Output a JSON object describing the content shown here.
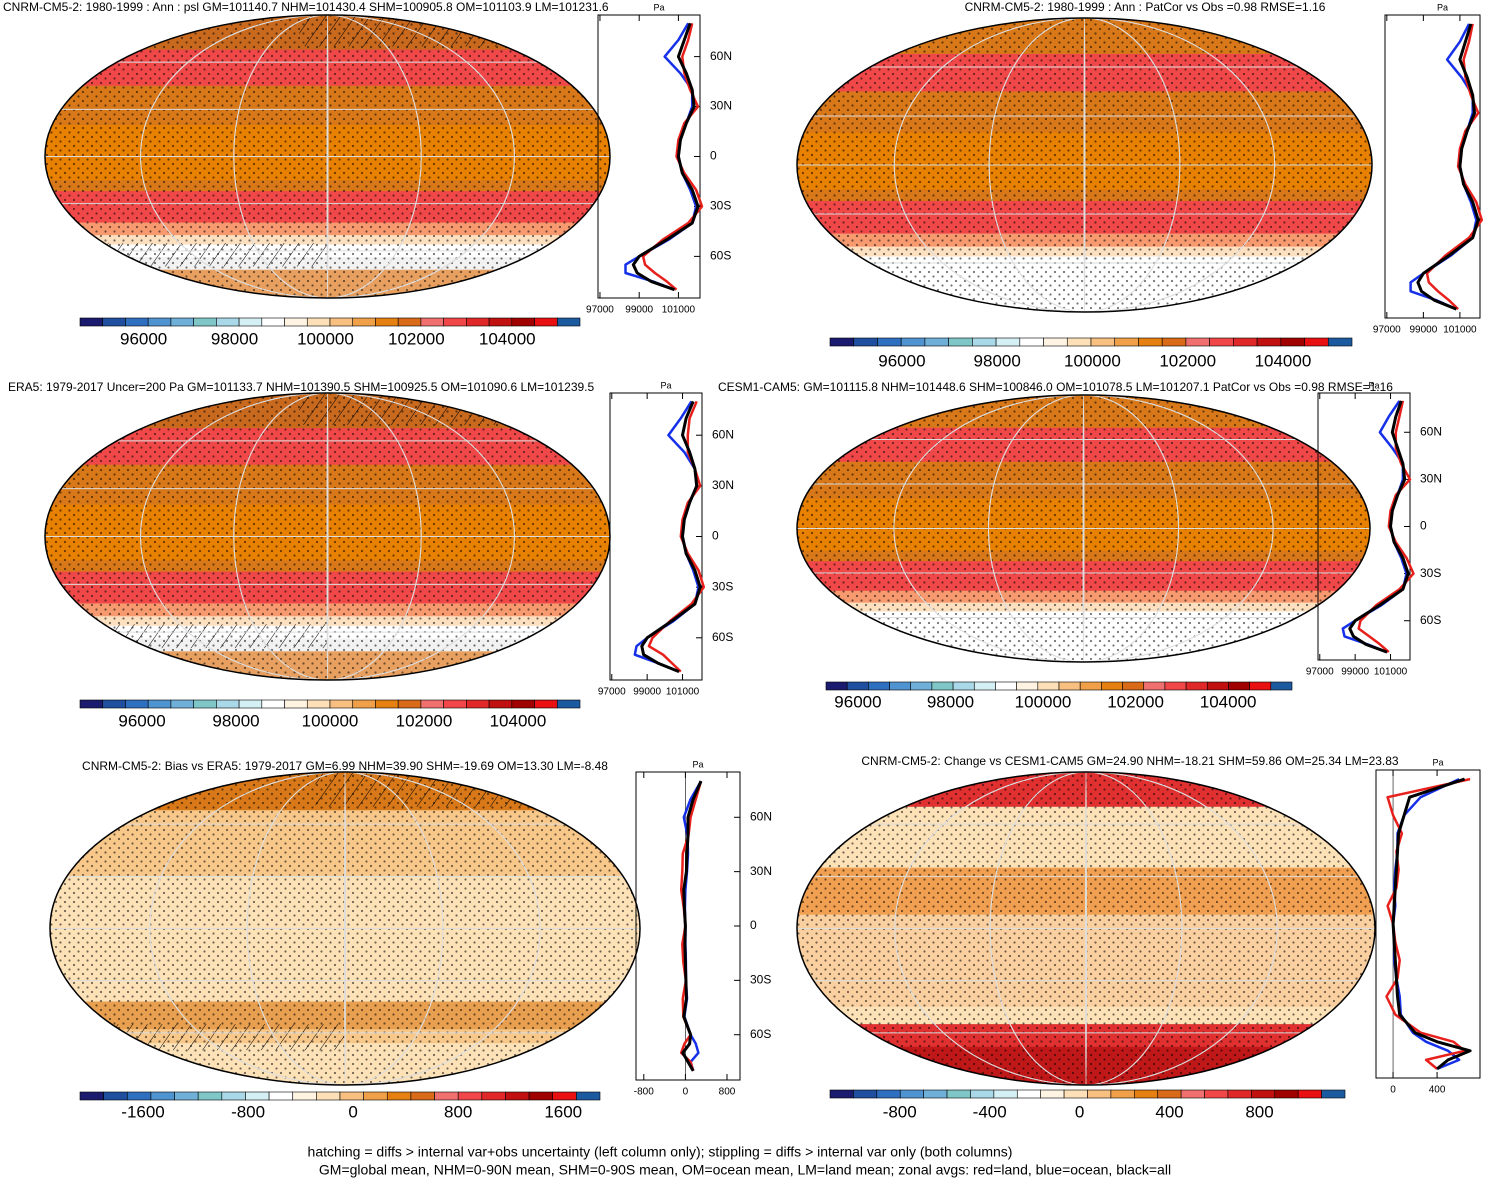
{
  "panels": [
    {
      "title": "CNRM-CM5-2: 1980-1999 : Ann : psl GM=101140.7 NHM=101430.4 SHM=100905.8 OM=101103.9 LM=101231.6",
      "style": "abs",
      "colorbar": {
        "lim": [
          94600,
          105600
        ],
        "ticks": [
          96000,
          98000,
          100000,
          102000,
          104000
        ]
      },
      "profile": {
        "unit": "Pa",
        "xlim": [
          96900,
          102100
        ],
        "xticks": [
          97000,
          99000,
          101000
        ],
        "ylim": [
          -85,
          85
        ],
        "yticks": [
          {
            "value": 60,
            "label": "60N"
          },
          {
            "value": 30,
            "label": "30N"
          },
          0,
          {
            "value": -30,
            "label": "30S"
          },
          {
            "value": -60,
            "label": "60S"
          }
        ],
        "lat": [
          80,
          70,
          60,
          50,
          40,
          30,
          20,
          10,
          0,
          -10,
          -20,
          -30,
          -40,
          -50,
          -60,
          -65,
          -70,
          -75,
          -80
        ],
        "land": [
          101700,
          101500,
          101200,
          101300,
          101600,
          102000,
          101300,
          101000,
          100900,
          101300,
          101900,
          102200,
          101500,
          100200,
          99200,
          99300,
          99800,
          100400,
          100900
        ],
        "ocean": [
          101500,
          101000,
          100300,
          101100,
          101700,
          101700,
          101400,
          101100,
          101000,
          101200,
          101600,
          101900,
          101700,
          100500,
          99000,
          98300,
          98300,
          99700,
          100800
        ],
        "all": [
          101600,
          101300,
          101000,
          101400,
          101700,
          101800,
          101400,
          101100,
          101000,
          101200,
          101700,
          102000,
          101700,
          100400,
          99000,
          98700,
          98900,
          99600,
          100800
        ]
      }
    },
    {
      "title": "CNRM-CM5-2: 1980-1999 : Ann : PatCor vs Obs =0.98 RMSE=1.16",
      "style": "abs2",
      "colorbar": {
        "lim": [
          94490,
          105450
        ],
        "ticks": [
          96000,
          98000,
          100000,
          102000,
          104000
        ]
      },
      "profile": {
        "unit": "Pa",
        "xlim": [
          96900,
          102100
        ],
        "xticks": [
          97000,
          99000,
          101000
        ],
        "ylim": [
          -85,
          85
        ],
        "lat": [
          80,
          70,
          60,
          50,
          40,
          30,
          20,
          10,
          0,
          -10,
          -20,
          -30,
          -40,
          -50,
          -60,
          -65,
          -70,
          -75,
          -80
        ],
        "land": [
          101700,
          101500,
          101200,
          101300,
          101600,
          102000,
          101300,
          101000,
          100900,
          101300,
          101900,
          102200,
          101500,
          100200,
          99200,
          99300,
          99800,
          100400,
          100900
        ],
        "ocean": [
          101500,
          101000,
          100300,
          101100,
          101700,
          101700,
          101400,
          101100,
          101000,
          101200,
          101600,
          101900,
          101700,
          100500,
          99000,
          98300,
          98300,
          99700,
          100800
        ],
        "all": [
          101600,
          101300,
          101000,
          101400,
          101700,
          101800,
          101400,
          101100,
          101000,
          101200,
          101700,
          102000,
          101700,
          100400,
          99000,
          98700,
          98900,
          99600,
          100800
        ]
      }
    },
    {
      "title": "ERA5: 1979-2017 Uncer=200 Pa GM=101133.7 NHM=101390.5 SHM=100925.5 OM=101090.6 LM=101239.5",
      "style": "abs",
      "colorbar": {
        "lim": [
          94680,
          105320
        ],
        "ticks": [
          96000,
          98000,
          100000,
          102000,
          104000
        ]
      },
      "profile": {
        "unit": "Pa",
        "xlim": [
          96900,
          102100
        ],
        "xticks": [
          97000,
          99000,
          101000
        ],
        "ylim": [
          -85,
          85
        ],
        "yticks": [
          {
            "value": 60,
            "label": "60N"
          },
          {
            "value": 30,
            "label": "30N"
          },
          0,
          {
            "value": -30,
            "label": "30S"
          },
          {
            "value": -60,
            "label": "60S"
          }
        ],
        "lat": [
          80,
          70,
          60,
          50,
          40,
          30,
          20,
          10,
          0,
          -10,
          -20,
          -30,
          -40,
          -50,
          -60,
          -65,
          -70,
          -75,
          -80
        ],
        "land": [
          101800,
          101400,
          101300,
          101300,
          101700,
          102000,
          101300,
          101000,
          100900,
          101300,
          101900,
          102200,
          101500,
          100300,
          99300,
          99100,
          99900,
          100400,
          100900
        ],
        "ocean": [
          101500,
          100900,
          100200,
          101100,
          101700,
          101800,
          101400,
          101100,
          101000,
          101200,
          101600,
          101900,
          101700,
          100500,
          99000,
          98400,
          98300,
          99600,
          100800
        ],
        "all": [
          101600,
          101200,
          101000,
          101400,
          101700,
          101800,
          101400,
          101100,
          101000,
          101200,
          101700,
          102000,
          101700,
          100400,
          99000,
          98700,
          98800,
          99600,
          100800
        ]
      }
    },
    {
      "title": "CESM1-CAM5: GM=101115.8 NHM=101448.6 SHM=100846.0 OM=101078.5 LM=101207.1 PatCor vs Obs =0.98 RMSE=1.16",
      "style": "abs2",
      "colorbar": {
        "lim": [
          95310,
          105380
        ],
        "ticks": [
          96000,
          98000,
          100000,
          102000,
          104000
        ]
      },
      "profile": {
        "unit": "Pa",
        "xlim": [
          96900,
          102100
        ],
        "xticks": [
          97000,
          99000,
          101000
        ],
        "ylim": [
          -85,
          85
        ],
        "yticks": [
          {
            "value": 60,
            "label": "60N"
          },
          {
            "value": 30,
            "label": "30N"
          },
          0,
          {
            "value": -30,
            "label": "30S"
          },
          {
            "value": -60,
            "label": "60S"
          }
        ],
        "lat": [
          80,
          70,
          60,
          50,
          40,
          30,
          20,
          10,
          0,
          -10,
          -20,
          -30,
          -40,
          -50,
          -60,
          -65,
          -70,
          -75,
          -80
        ],
        "land": [
          101700,
          101500,
          101300,
          101300,
          101600,
          102100,
          101300,
          101000,
          100900,
          101300,
          101900,
          102300,
          101500,
          100200,
          99300,
          99200,
          99800,
          100400,
          100900
        ],
        "ocean": [
          101500,
          100900,
          100400,
          101100,
          101700,
          101700,
          101400,
          101100,
          101000,
          101200,
          101600,
          101900,
          101700,
          100500,
          99000,
          98300,
          98400,
          99700,
          100800
        ],
        "all": [
          101600,
          101300,
          101100,
          101400,
          101700,
          101800,
          101400,
          101100,
          101000,
          101200,
          101700,
          102000,
          101700,
          100400,
          99000,
          98700,
          98900,
          99600,
          100800
        ]
      }
    },
    {
      "title": "CNRM-CM5-2: Bias vs ERA5: 1979-2017 GM=6.99 NHM=39.90 SHM=-19.69 OM=13.30 LM=-8.48",
      "style": "bias",
      "colorbar": {
        "lim": [
          -2080,
          1880
        ],
        "ticks": [
          -1600,
          -800,
          0,
          800,
          1600
        ]
      },
      "profile": {
        "unit": "Pa",
        "xlim": [
          -950,
          1050
        ],
        "xticks": [
          -800,
          0,
          800
        ],
        "ylim": [
          -85,
          85
        ],
        "yticks": [
          {
            "value": 60,
            "label": "60N"
          },
          {
            "value": 30,
            "label": "30N"
          },
          0,
          {
            "value": -30,
            "label": "30S"
          },
          {
            "value": -60,
            "label": "60S"
          }
        ],
        "lat": [
          80,
          70,
          60,
          50,
          40,
          30,
          20,
          10,
          0,
          -10,
          -20,
          -30,
          -40,
          -50,
          -60,
          -65,
          -70,
          -75,
          -80
        ],
        "land": [
          300,
          200,
          100,
          60,
          -50,
          -60,
          -80,
          -30,
          0,
          -60,
          -40,
          10,
          -50,
          -40,
          100,
          -20,
          -80,
          100,
          150
        ],
        "ocean": [
          300,
          100,
          -30,
          40,
          50,
          30,
          0,
          -10,
          0,
          0,
          10,
          10,
          30,
          -20,
          100,
          200,
          250,
          100,
          150
        ],
        "all": [
          300,
          150,
          50,
          50,
          30,
          20,
          -30,
          -20,
          0,
          -10,
          0,
          10,
          20,
          -30,
          100,
          80,
          -50,
          50,
          150
        ]
      }
    },
    {
      "title": "CNRM-CM5-2: Change vs CESM1-CAM5 GM=24.90 NHM=-18.21 SHM=59.86 OM=25.34 LM=23.83",
      "style": "change",
      "colorbar": {
        "lim": [
          -1110,
          1180
        ],
        "ticks": [
          -800,
          -400,
          0,
          400,
          800
        ]
      },
      "profile": {
        "unit": "Pa",
        "xlim": [
          -155,
          790
        ],
        "xticks": [
          0,
          400
        ],
        "ylim": [
          -85,
          85
        ],
        "lat": [
          80,
          70,
          60,
          50,
          40,
          30,
          20,
          10,
          0,
          -10,
          -20,
          -30,
          -40,
          -50,
          -60,
          -65,
          -70,
          -75,
          -80
        ],
        "land": [
          700,
          -50,
          0,
          80,
          30,
          50,
          30,
          -50,
          0,
          20,
          60,
          40,
          -60,
          20,
          250,
          550,
          650,
          300,
          400
        ],
        "ocean": [
          600,
          250,
          100,
          40,
          40,
          20,
          10,
          20,
          0,
          10,
          10,
          30,
          60,
          70,
          180,
          300,
          500,
          600,
          400
        ],
        "all": [
          650,
          150,
          100,
          50,
          40,
          30,
          20,
          10,
          0,
          10,
          20,
          30,
          40,
          60,
          200,
          400,
          700,
          500,
          400
        ]
      }
    }
  ],
  "colors": {
    "land": "#e8201c",
    "ocean": "#1530e8",
    "all": "#000000",
    "palette": [
      "#1a1a6e",
      "#1f4f9e",
      "#2f6fbf",
      "#4f93d0",
      "#6fb0d8",
      "#7fc7c7",
      "#a9d8e8",
      "#d4f0f4",
      "#ffffff",
      "#fff3e2",
      "#fde0b8",
      "#f8c080",
      "#f0a048",
      "#e68010",
      "#d86a18",
      "#f07070",
      "#f04848",
      "#e02828",
      "#c01010",
      "#a00000",
      "#e81010",
      "#1c5aa0"
    ]
  },
  "footer": [
    "hatching = diffs > internal var+obs uncertainty (left column only); stippling = diffs > internal var only (both columns)",
    "GM=global mean, NHM=0-90N mean, SHM=0-90S mean, OM=ocean mean, LM=land mean; zonal avgs: red=land, blue=ocean, black=all"
  ]
}
